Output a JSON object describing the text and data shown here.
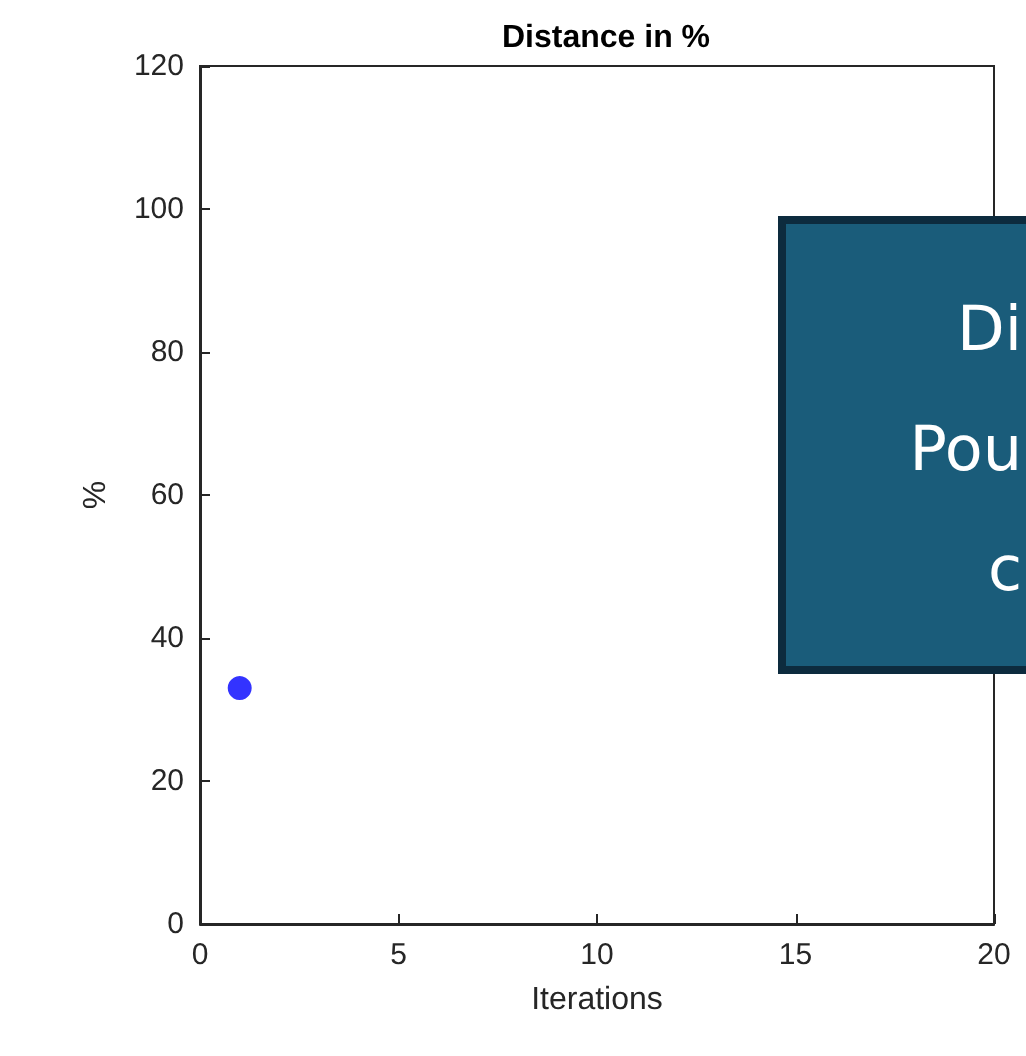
{
  "chart_data": {
    "type": "scatter",
    "title": "Distance in %",
    "xlabel": "Iterations",
    "ylabel": "%",
    "x": [
      1
    ],
    "values": [
      33
    ],
    "color": "#0000ff",
    "marker": "circle",
    "xlim": [
      0,
      20
    ],
    "xticks": [
      0,
      5,
      10,
      15,
      20
    ],
    "ylim": [
      0,
      120
    ],
    "yticks": [
      0,
      20,
      40,
      60,
      80,
      100,
      120
    ],
    "grid": false,
    "annotations": [
      "Di",
      "Pou",
      "c"
    ]
  }
}
